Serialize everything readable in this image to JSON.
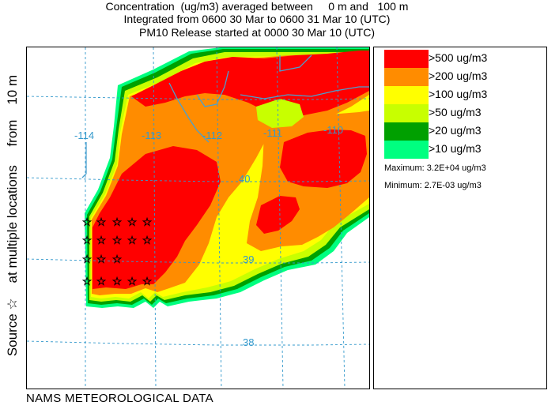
{
  "header": {
    "line1": "Concentration  (ug/m3) averaged between     0 m and   100 m",
    "line2": "Integrated from 0600 30 Mar to 0600 31 Mar 10 (UTC)",
    "line3": "PM10 Release started at 0000 30 Mar 10 (UTC)"
  },
  "side_label": "Source ☆    at multiple locations     from    10 m",
  "bottom_label": "NAMS METEOROLOGICAL DATA",
  "map": {
    "meridian_labels": [
      "-114",
      "-113",
      "-112",
      "-111",
      "-110"
    ],
    "parallel_labels": [
      "40",
      "39",
      "38"
    ],
    "source_symbol": "☆",
    "source_count": 19
  },
  "legend": {
    "items": [
      {
        "label": ">500 ug/m3",
        "color": "#ff0000"
      },
      {
        "label": ">200 ug/m3",
        "color": "#ff8c00"
      },
      {
        "label": ">100 ug/m3",
        "color": "#ffff00"
      },
      {
        "label": ">50 ug/m3",
        "color": "#c8ff00"
      },
      {
        "label": ">20 ug/m3",
        "color": "#00a000"
      },
      {
        "label": ">10 ug/m3",
        "color": "#00ff80"
      }
    ],
    "maximum": "Maximum: 3.2E+04 ug/m3",
    "minimum": "Minimum: 2.7E-03 ug/m3"
  },
  "colors": {
    "grid": "#3399cc",
    "background": "#ffffff"
  }
}
